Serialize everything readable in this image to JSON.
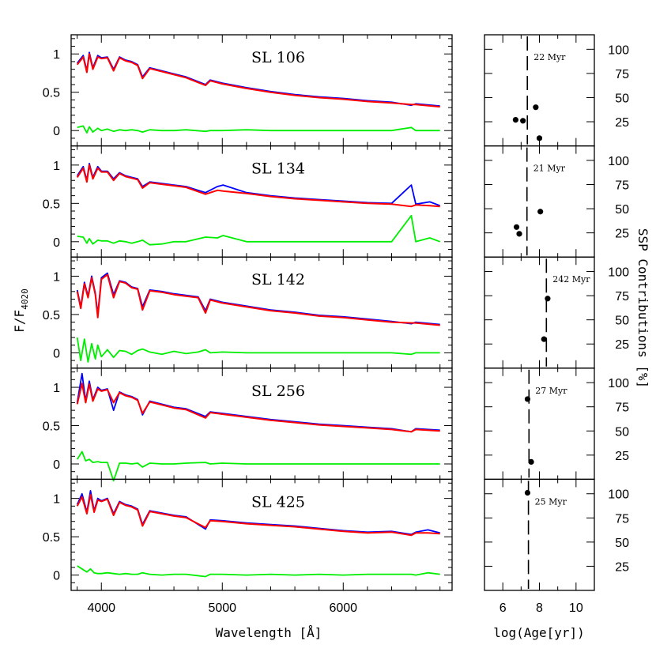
{
  "chart_data": [
    {
      "type": "line",
      "panel": "SL 106",
      "title": "SL 106",
      "x": [
        3800,
        3850,
        3880,
        3900,
        3930,
        3970,
        4000,
        4050,
        4101,
        4150,
        4200,
        4250,
        4300,
        4340,
        4400,
        4500,
        4600,
        4700,
        4861,
        4900,
        5000,
        5200,
        5400,
        5600,
        5800,
        6000,
        6200,
        6400,
        6563,
        6600,
        6800
      ],
      "series": [
        {
          "color": "#0000ff",
          "values": [
            0.88,
            0.98,
            0.78,
            1.02,
            0.82,
            0.98,
            0.95,
            0.96,
            0.8,
            0.96,
            0.92,
            0.9,
            0.86,
            0.7,
            0.82,
            0.78,
            0.74,
            0.7,
            0.6,
            0.66,
            0.62,
            0.56,
            0.51,
            0.47,
            0.44,
            0.42,
            0.39,
            0.37,
            0.33,
            0.35,
            0.32
          ]
        },
        {
          "color": "#ff0000",
          "values": [
            0.86,
            0.96,
            0.76,
            1.0,
            0.8,
            0.96,
            0.94,
            0.95,
            0.78,
            0.95,
            0.91,
            0.89,
            0.85,
            0.68,
            0.81,
            0.77,
            0.73,
            0.69,
            0.59,
            0.65,
            0.61,
            0.55,
            0.5,
            0.46,
            0.43,
            0.41,
            0.38,
            0.36,
            0.34,
            0.34,
            0.31
          ]
        },
        {
          "color": "#00ee00",
          "values": [
            0.04,
            0.06,
            -0.03,
            0.05,
            -0.02,
            0.03,
            0.0,
            0.02,
            -0.01,
            0.01,
            0.0,
            0.01,
            0.0,
            -0.02,
            0.01,
            0.0,
            0.0,
            0.01,
            -0.01,
            0.0,
            0.0,
            0.01,
            0.0,
            0.0,
            0.0,
            0.0,
            0.0,
            0.0,
            0.04,
            0.0,
            0.0
          ]
        }
      ],
      "xlim": [
        3750,
        6900
      ],
      "ylim": [
        -0.2,
        1.25
      ],
      "yticks": [
        "0",
        "0.5",
        "1"
      ]
    },
    {
      "type": "line",
      "panel": "SL 134",
      "title": "SL 134",
      "x": [
        3800,
        3850,
        3880,
        3900,
        3930,
        3970,
        4000,
        4050,
        4101,
        4150,
        4200,
        4250,
        4300,
        4340,
        4400,
        4500,
        4600,
        4700,
        4861,
        4960,
        5007,
        5200,
        5400,
        5600,
        5800,
        6000,
        6200,
        6400,
        6563,
        6600,
        6716,
        6800
      ],
      "series": [
        {
          "color": "#0000ff",
          "values": [
            0.86,
            0.98,
            0.8,
            1.02,
            0.84,
            0.98,
            0.92,
            0.92,
            0.82,
            0.9,
            0.86,
            0.84,
            0.82,
            0.72,
            0.78,
            0.76,
            0.74,
            0.72,
            0.64,
            0.72,
            0.74,
            0.64,
            0.6,
            0.57,
            0.55,
            0.53,
            0.51,
            0.5,
            0.74,
            0.49,
            0.52,
            0.47
          ]
        },
        {
          "color": "#ff0000",
          "values": [
            0.84,
            0.96,
            0.78,
            1.0,
            0.82,
            0.96,
            0.91,
            0.91,
            0.8,
            0.89,
            0.85,
            0.83,
            0.81,
            0.7,
            0.77,
            0.75,
            0.73,
            0.71,
            0.62,
            0.67,
            0.66,
            0.63,
            0.59,
            0.56,
            0.54,
            0.52,
            0.5,
            0.49,
            0.46,
            0.48,
            0.47,
            0.46
          ]
        },
        {
          "color": "#00ee00",
          "values": [
            0.07,
            0.06,
            -0.02,
            0.04,
            -0.03,
            0.02,
            0.01,
            0.01,
            -0.02,
            0.01,
            0.0,
            -0.02,
            0.0,
            0.02,
            -0.04,
            -0.03,
            0.0,
            0.0,
            0.06,
            0.05,
            0.08,
            0.0,
            0.0,
            0.0,
            0.0,
            0.0,
            0.0,
            0.0,
            0.34,
            0.0,
            0.05,
            0.0
          ]
        }
      ],
      "xlim": [
        3750,
        6900
      ],
      "ylim": [
        -0.2,
        1.25
      ],
      "yticks": [
        "0",
        "0.5",
        "1"
      ]
    },
    {
      "type": "line",
      "panel": "SL 142",
      "title": "SL 142",
      "x": [
        3800,
        3830,
        3860,
        3890,
        3920,
        3950,
        3970,
        4000,
        4050,
        4101,
        4150,
        4200,
        4250,
        4300,
        4340,
        4400,
        4500,
        4600,
        4700,
        4800,
        4861,
        4900,
        5000,
        5200,
        5400,
        5600,
        5800,
        6000,
        6200,
        6400,
        6563,
        6600,
        6800
      ],
      "series": [
        {
          "color": "#0000ff",
          "values": [
            0.82,
            0.6,
            0.92,
            0.74,
            1.0,
            0.78,
            0.5,
            0.98,
            1.04,
            0.76,
            0.94,
            0.92,
            0.86,
            0.84,
            0.6,
            0.82,
            0.8,
            0.77,
            0.75,
            0.73,
            0.55,
            0.7,
            0.66,
            0.61,
            0.56,
            0.53,
            0.49,
            0.47,
            0.44,
            0.41,
            0.38,
            0.4,
            0.37
          ]
        },
        {
          "color": "#ff0000",
          "values": [
            0.8,
            0.58,
            0.9,
            0.72,
            0.98,
            0.76,
            0.46,
            0.96,
            1.02,
            0.72,
            0.93,
            0.91,
            0.85,
            0.83,
            0.56,
            0.81,
            0.79,
            0.76,
            0.74,
            0.72,
            0.52,
            0.69,
            0.65,
            0.6,
            0.55,
            0.52,
            0.48,
            0.46,
            0.43,
            0.4,
            0.39,
            0.39,
            0.36
          ]
        },
        {
          "color": "#00ee00",
          "values": [
            0.2,
            -0.1,
            0.18,
            -0.12,
            0.12,
            -0.08,
            0.1,
            -0.05,
            0.04,
            -0.06,
            0.03,
            0.02,
            -0.02,
            0.03,
            0.05,
            0.01,
            -0.02,
            0.02,
            -0.01,
            0.01,
            0.04,
            0.0,
            0.01,
            0.0,
            0.0,
            0.0,
            0.0,
            0.0,
            0.0,
            0.0,
            -0.02,
            0.0,
            0.0
          ]
        }
      ],
      "xlim": [
        3750,
        6900
      ],
      "ylim": [
        -0.2,
        1.25
      ],
      "yticks": [
        "0",
        "0.5",
        "1"
      ]
    },
    {
      "type": "line",
      "panel": "SL 256",
      "title": "SL 256",
      "x": [
        3800,
        3840,
        3870,
        3900,
        3930,
        3970,
        4000,
        4050,
        4101,
        4150,
        4200,
        4250,
        4300,
        4340,
        4400,
        4500,
        4600,
        4700,
        4861,
        4900,
        5000,
        5200,
        5400,
        5600,
        5800,
        6000,
        6200,
        6400,
        6563,
        6600,
        6800
      ],
      "series": [
        {
          "color": "#0000ff",
          "values": [
            0.8,
            1.18,
            0.82,
            1.08,
            0.84,
            1.0,
            0.96,
            0.98,
            0.7,
            0.94,
            0.9,
            0.88,
            0.84,
            0.64,
            0.82,
            0.78,
            0.74,
            0.72,
            0.62,
            0.68,
            0.66,
            0.62,
            0.58,
            0.55,
            0.52,
            0.5,
            0.48,
            0.46,
            0.42,
            0.46,
            0.44
          ]
        },
        {
          "color": "#ff0000",
          "values": [
            0.78,
            1.05,
            0.8,
            1.04,
            0.82,
            0.98,
            0.95,
            0.97,
            0.8,
            0.93,
            0.89,
            0.87,
            0.83,
            0.66,
            0.81,
            0.77,
            0.73,
            0.71,
            0.6,
            0.67,
            0.65,
            0.61,
            0.57,
            0.54,
            0.51,
            0.49,
            0.47,
            0.45,
            0.42,
            0.45,
            0.43
          ]
        },
        {
          "color": "#00ee00",
          "values": [
            0.06,
            0.16,
            0.04,
            0.06,
            0.02,
            0.03,
            0.02,
            0.02,
            -0.22,
            0.01,
            0.01,
            0.0,
            0.01,
            -0.04,
            0.01,
            0.0,
            0.0,
            0.01,
            0.02,
            0.0,
            0.01,
            0.0,
            0.0,
            0.0,
            0.0,
            0.0,
            0.0,
            0.0,
            0.0,
            0.0,
            0.0
          ]
        }
      ],
      "xlim": [
        3750,
        6900
      ],
      "ylim": [
        -0.2,
        1.25
      ],
      "yticks": [
        "0",
        "0.5",
        "1"
      ]
    },
    {
      "type": "line",
      "panel": "SL 425",
      "title": "SL 425",
      "x": [
        3800,
        3840,
        3880,
        3910,
        3940,
        3970,
        4000,
        4050,
        4101,
        4150,
        4200,
        4250,
        4300,
        4340,
        4400,
        4500,
        4600,
        4700,
        4861,
        4900,
        5000,
        5200,
        5400,
        5600,
        5800,
        6000,
        6200,
        6400,
        6563,
        6600,
        6700,
        6800
      ],
      "series": [
        {
          "color": "#0000ff",
          "values": [
            0.92,
            1.06,
            0.82,
            1.1,
            0.84,
            1.0,
            0.97,
            1.0,
            0.8,
            0.96,
            0.92,
            0.9,
            0.86,
            0.66,
            0.84,
            0.81,
            0.78,
            0.76,
            0.6,
            0.72,
            0.71,
            0.68,
            0.66,
            0.64,
            0.61,
            0.58,
            0.56,
            0.57,
            0.53,
            0.56,
            0.59,
            0.55
          ]
        },
        {
          "color": "#ff0000",
          "values": [
            0.9,
            1.02,
            0.8,
            1.05,
            0.82,
            0.98,
            0.96,
            0.99,
            0.78,
            0.95,
            0.91,
            0.89,
            0.85,
            0.64,
            0.83,
            0.8,
            0.77,
            0.75,
            0.62,
            0.71,
            0.7,
            0.67,
            0.65,
            0.63,
            0.6,
            0.57,
            0.55,
            0.56,
            0.52,
            0.55,
            0.55,
            0.54
          ]
        },
        {
          "color": "#00ee00",
          "values": [
            0.12,
            0.08,
            0.04,
            0.08,
            0.03,
            0.02,
            0.02,
            0.03,
            0.02,
            0.01,
            0.02,
            0.01,
            0.01,
            0.03,
            0.01,
            0.0,
            0.01,
            0.01,
            -0.02,
            0.01,
            0.01,
            0.0,
            0.01,
            0.0,
            0.01,
            0.0,
            0.01,
            0.01,
            0.01,
            0.0,
            0.03,
            0.01
          ]
        }
      ],
      "xlim": [
        3750,
        6900
      ],
      "ylim": [
        -0.2,
        1.25
      ],
      "yticks": [
        "0",
        "0.5",
        "1"
      ]
    },
    {
      "type": "scatter",
      "panel": "SL 106",
      "age_label": "22 Myr",
      "vline": 7.34,
      "points": [
        [
          6.7,
          27
        ],
        [
          7.1,
          26
        ],
        [
          7.8,
          40
        ],
        [
          8.0,
          8
        ]
      ],
      "xlim": [
        5,
        11
      ],
      "ylim": [
        0,
        115
      ],
      "yticks": [
        "25",
        "50",
        "75",
        "100"
      ]
    },
    {
      "type": "scatter",
      "panel": "SL 134",
      "age_label": "21 Myr",
      "vline": 7.32,
      "points": [
        [
          6.75,
          31
        ],
        [
          6.9,
          24
        ],
        [
          8.05,
          47
        ]
      ],
      "xlim": [
        5,
        11
      ],
      "ylim": [
        0,
        115
      ],
      "yticks": [
        "25",
        "50",
        "75",
        "100"
      ]
    },
    {
      "type": "scatter",
      "panel": "SL 142",
      "age_label": "242 Myr",
      "vline": 8.38,
      "points": [
        [
          8.25,
          30
        ],
        [
          8.45,
          72
        ]
      ],
      "xlim": [
        5,
        11
      ],
      "ylim": [
        0,
        115
      ],
      "yticks": [
        "25",
        "50",
        "75",
        "100"
      ]
    },
    {
      "type": "scatter",
      "panel": "SL 256",
      "age_label": "27 Myr",
      "vline": 7.43,
      "points": [
        [
          7.35,
          83
        ],
        [
          7.55,
          18
        ]
      ],
      "xlim": [
        5,
        11
      ],
      "ylim": [
        0,
        115
      ],
      "yticks": [
        "25",
        "50",
        "75",
        "100"
      ]
    },
    {
      "type": "scatter",
      "panel": "SL 425",
      "age_label": "25 Myr",
      "vline": 7.4,
      "points": [
        [
          7.35,
          101
        ]
      ],
      "xlim": [
        5,
        11
      ],
      "ylim": [
        0,
        115
      ],
      "yticks": [
        "25",
        "50",
        "75",
        "100"
      ]
    }
  ],
  "axes": {
    "left_ylabel": "F/F",
    "left_ylabel_sub": "4020",
    "left_xlabel": "Wavelength [Å]",
    "left_xticks": [
      "4000",
      "5000",
      "6000"
    ],
    "right_xlabel": "log(Age[yr])",
    "right_xticks": [
      "6",
      "8",
      "10"
    ],
    "right_ylabel": "SSP Contributions [%]"
  }
}
